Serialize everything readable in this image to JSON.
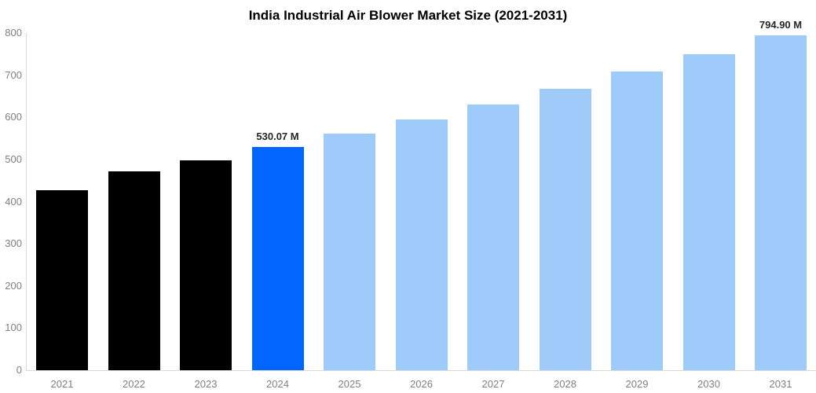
{
  "chart_data": {
    "type": "bar",
    "title": "India Industrial Air Blower Market Size (2021-2031)",
    "categories": [
      "2021",
      "2022",
      "2023",
      "2024",
      "2025",
      "2026",
      "2027",
      "2028",
      "2029",
      "2030",
      "2031"
    ],
    "values": [
      427,
      471.5,
      498,
      530.07,
      561.7,
      595.1,
      630.6,
      668.2,
      708,
      750.2,
      794.9
    ],
    "value_unit": "M",
    "data_labels": [
      "",
      "",
      "",
      "530.07 M",
      "",
      "",
      "",
      "",
      "",
      "",
      "794.90 M"
    ],
    "bar_roles": [
      "historical",
      "historical",
      "historical",
      "highlight",
      "forecast",
      "forecast",
      "forecast",
      "forecast",
      "forecast",
      "forecast",
      "forecast"
    ],
    "xlabel": "",
    "ylabel": "",
    "ylim": [
      0,
      800
    ],
    "yticks": [
      "0",
      "100",
      "200",
      "300",
      "400",
      "500",
      "600",
      "700",
      "800"
    ],
    "grid": false,
    "legend": false,
    "colors": {
      "historical": "#000000",
      "highlight": "#0066ff",
      "forecast": "#9fcbfa",
      "axis_text": "#808080",
      "axis_line": "#d9d9d9",
      "label_text": "#262626",
      "title_text": "#000000",
      "background": "#ffffff"
    }
  }
}
